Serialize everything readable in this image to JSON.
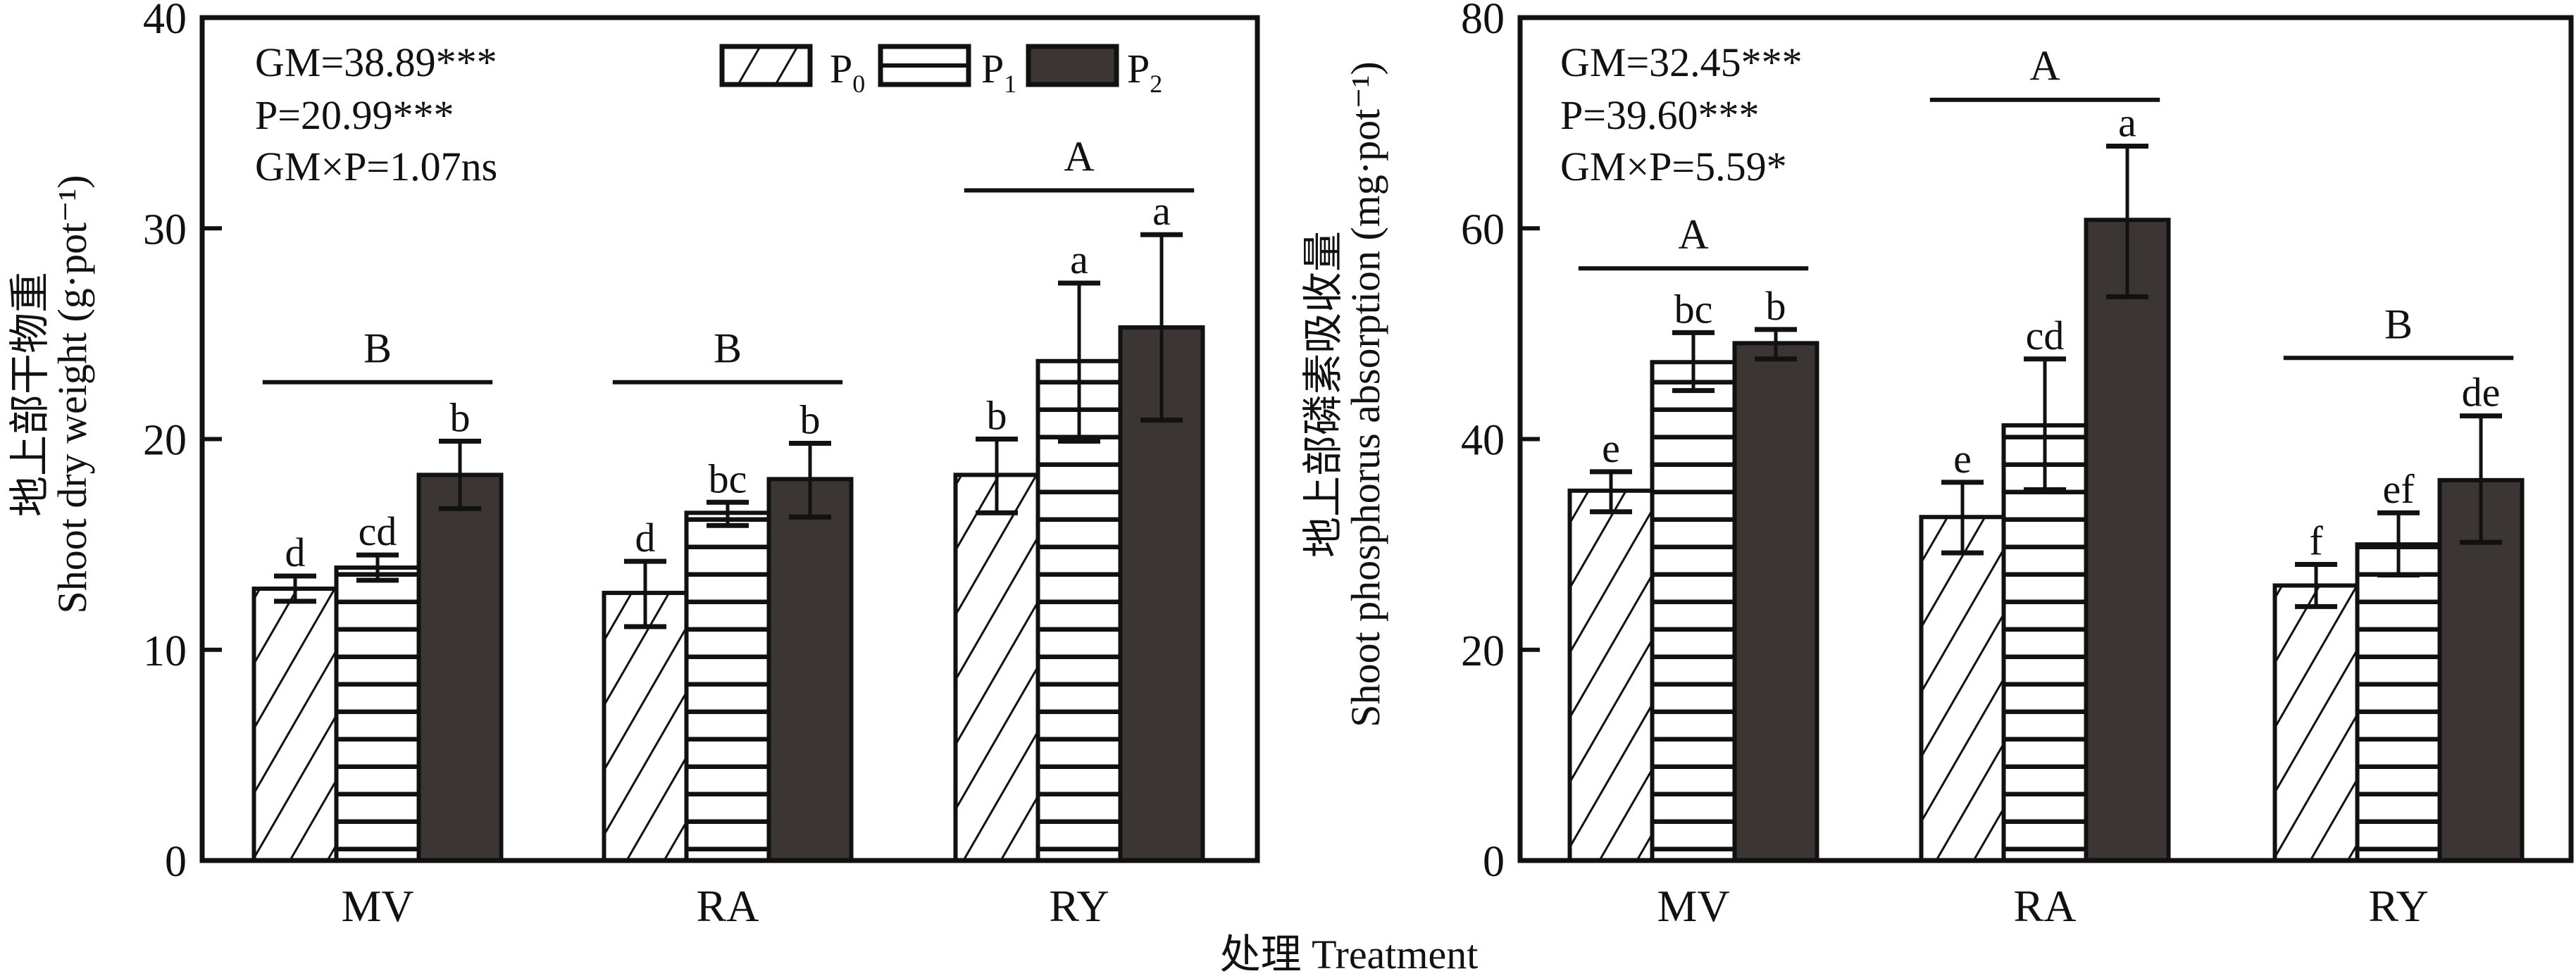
{
  "legend": [
    {
      "key": "P0",
      "base": "P",
      "sub": "0",
      "pattern": "diagonal-hatch"
    },
    {
      "key": "P1",
      "base": "P",
      "sub": "1",
      "pattern": "horizontal-lines"
    },
    {
      "key": "P2",
      "base": "P",
      "sub": "2",
      "pattern": "solid-dark"
    }
  ],
  "colors": {
    "dark_fill": "#3b3533",
    "stroke": "#111111",
    "background": "#ffffff"
  },
  "shared_xlabel": "处理 Treatment",
  "chart_data": [
    {
      "type": "bar",
      "title": "",
      "ylabel_cn": "地上部干物重",
      "ylabel_en": "Shoot dry weight (g·pot⁻¹)",
      "xlabel": "处理 Treatment",
      "ylim": [
        0,
        40
      ],
      "yticks": [
        0,
        10,
        20,
        30,
        40
      ],
      "categories": [
        "MV",
        "RA",
        "RY"
      ],
      "series": [
        {
          "name": "P0",
          "values": [
            12.9,
            12.7,
            18.3
          ],
          "err_low": [
            12.3,
            11.1,
            16.5
          ],
          "err_high": [
            13.5,
            14.2,
            20.0
          ],
          "letters": [
            "d",
            "d",
            "b"
          ]
        },
        {
          "name": "P1",
          "values": [
            13.9,
            16.5,
            23.7
          ],
          "err_low": [
            13.3,
            15.9,
            19.9
          ],
          "err_high": [
            14.5,
            17.0,
            27.4
          ],
          "letters": [
            "cd",
            "bc",
            "a"
          ]
        },
        {
          "name": "P2",
          "values": [
            18.3,
            18.1,
            25.3
          ],
          "err_low": [
            16.7,
            16.3,
            20.9
          ],
          "err_high": [
            19.9,
            19.8,
            29.7
          ],
          "letters": [
            "b",
            "b",
            "a"
          ]
        }
      ],
      "group_letters": [
        {
          "category": "MV",
          "letter": "B",
          "level": 22.7
        },
        {
          "category": "RA",
          "letter": "B",
          "level": 22.7
        },
        {
          "category": "RY",
          "letter": "A",
          "level": 31.8
        }
      ],
      "stats": [
        "GM=38.89***",
        "P=20.99***",
        "GM×P=1.07ns"
      ],
      "legend_position": "top-right"
    },
    {
      "type": "bar",
      "title": "",
      "ylabel_cn": "地上部磷素吸收量",
      "ylabel_en": "Shoot phosphorus absorption (mg·pot⁻¹)",
      "xlabel": "处理 Treatment",
      "ylim": [
        0,
        80
      ],
      "yticks": [
        0,
        20,
        40,
        60,
        80
      ],
      "categories": [
        "MV",
        "RA",
        "RY"
      ],
      "series": [
        {
          "name": "P0",
          "values": [
            35.1,
            32.6,
            26.1
          ],
          "err_low": [
            33.1,
            29.2,
            24.1
          ],
          "err_high": [
            36.9,
            35.9,
            28.1
          ],
          "letters": [
            "e",
            "e",
            "f"
          ]
        },
        {
          "name": "P1",
          "values": [
            47.3,
            41.3,
            30.0
          ],
          "err_low": [
            44.6,
            35.2,
            27.1
          ],
          "err_high": [
            50.1,
            47.6,
            33.0
          ],
          "letters": [
            "bc",
            "cd",
            "ef"
          ]
        },
        {
          "name": "P2",
          "values": [
            49.1,
            60.8,
            36.1
          ],
          "err_low": [
            47.6,
            53.5,
            30.2
          ],
          "err_high": [
            50.4,
            67.8,
            42.2
          ],
          "letters": [
            "b",
            "a",
            "de"
          ]
        }
      ],
      "group_letters": [
        {
          "category": "MV",
          "letter": "A",
          "level": 56.2
        },
        {
          "category": "RA",
          "letter": "A",
          "level": 72.2
        },
        {
          "category": "RY",
          "letter": "B",
          "level": 47.7
        }
      ],
      "stats": [
        "GM=32.45***",
        "P=39.60***",
        "GM×P=5.59*"
      ]
    }
  ]
}
